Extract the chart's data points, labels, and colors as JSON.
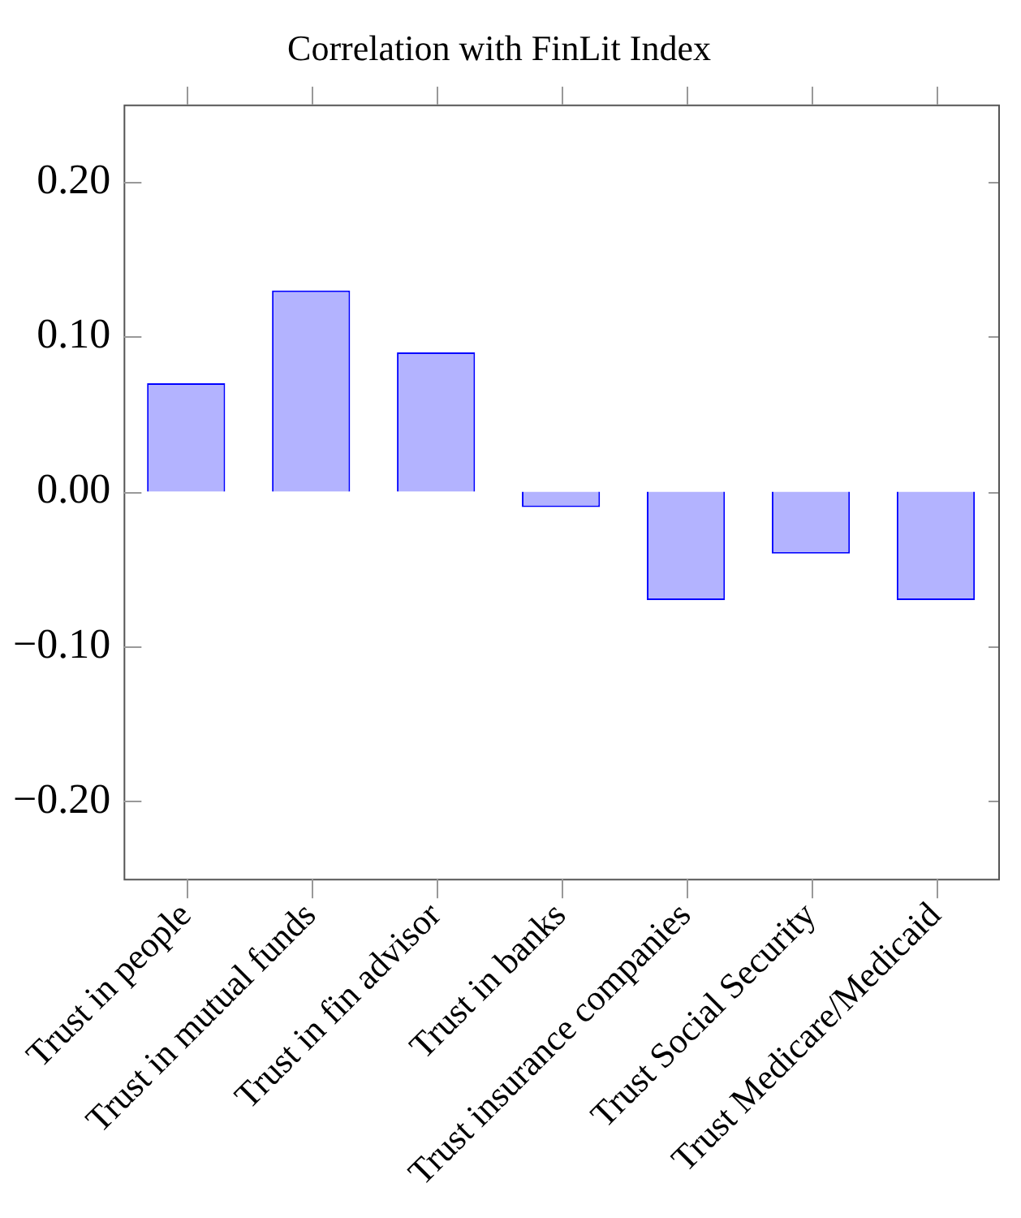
{
  "chart_data": {
    "type": "bar",
    "title": "Correlation with FinLit Index",
    "categories": [
      "Trust in people",
      "Trust in mutual funds",
      "Trust in fin advisor",
      "Trust in banks",
      "Trust insurance companies",
      "Trust Social Security",
      "Trust Medicare/Medicaid"
    ],
    "series": [
      {
        "color": "#b3b3ff",
        "values": [
          0.07,
          0.13,
          0.09,
          -0.01,
          -0.07,
          -0.04,
          -0.07
        ]
      }
    ],
    "ylim": [
      -0.25,
      0.25
    ],
    "yticks": [
      {
        "value": -0.2,
        "label": "−0.20"
      },
      {
        "value": -0.1,
        "label": "−0.10"
      },
      {
        "value": 0,
        "label": "0.00"
      },
      {
        "value": 0.1,
        "label": "0.10"
      },
      {
        "value": 0.2,
        "label": "0.20"
      }
    ],
    "grid": false,
    "legend": false
  }
}
